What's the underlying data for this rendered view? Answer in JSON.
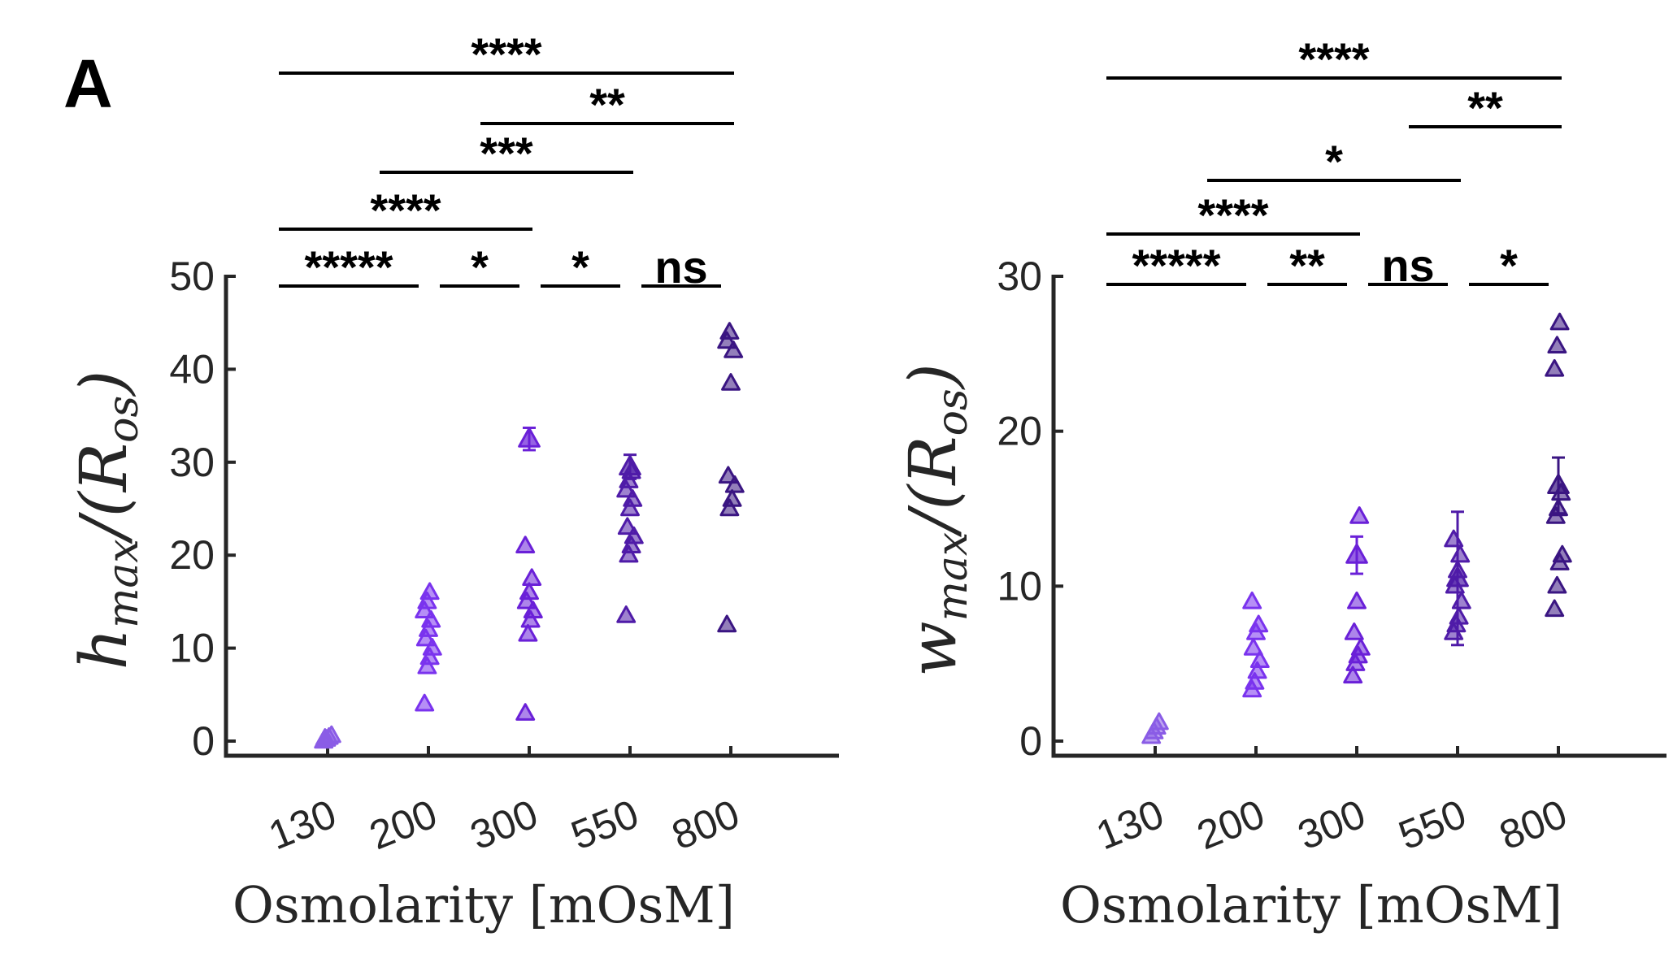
{
  "figure": {
    "panel_label": "A"
  },
  "chart_data": [
    {
      "type": "scatter",
      "ylabel_main": "h",
      "ylabel_sub": "max",
      "ylabel_rest": "/(R",
      "ylabel_sub2": "os",
      "ylabel_close": ")",
      "xlabel": "Osmolarity [mOsM]",
      "categories": [
        "130",
        "200",
        "300",
        "550",
        "800"
      ],
      "ylim": [
        -1.5,
        50
      ],
      "yticks": [
        0,
        10,
        20,
        30,
        40,
        50
      ],
      "grid": false,
      "colors": [
        "#8a5ce6",
        "#7a33ee",
        "#6a20d8",
        "#4f1ba8",
        "#3a1582"
      ],
      "series": [
        {
          "category": "130",
          "points": [
            0.0,
            0.2,
            0.4,
            0.6,
            0.3
          ]
        },
        {
          "category": "200",
          "points": [
            4,
            8,
            9,
            10,
            11,
            12,
            13,
            14,
            15,
            16
          ]
        },
        {
          "category": "300",
          "points": [
            3,
            11.5,
            13,
            14,
            15,
            16,
            17.5,
            21
          ],
          "mean_point": {
            "value": 32.5,
            "err": 1.2
          }
        },
        {
          "category": "550",
          "points": [
            13.5,
            20,
            21,
            22,
            23,
            25,
            26,
            27,
            28,
            29
          ],
          "mean_point": {
            "value": 29.5,
            "err": 1.3
          }
        },
        {
          "category": "800",
          "points": [
            12.5,
            25,
            26,
            27.5,
            28.5,
            38.5,
            42,
            43,
            44
          ]
        }
      ],
      "significance": [
        {
          "label": "*****",
          "from": "130",
          "to": "200",
          "level": 0
        },
        {
          "label": "*",
          "from": "200",
          "to": "300",
          "level": 0
        },
        {
          "label": "*",
          "from": "300",
          "to": "550",
          "level": 0
        },
        {
          "label": "ns",
          "from": "550",
          "to": "800",
          "level": 0
        },
        {
          "label": "****",
          "from": "130",
          "to": "300",
          "level": 1
        },
        {
          "label": "***",
          "from": "200",
          "to": "550",
          "level": 2
        },
        {
          "label": "**",
          "from": "300",
          "to": "800",
          "level": 3
        },
        {
          "label": "****",
          "from": "130",
          "to": "800",
          "level": 4
        }
      ]
    },
    {
      "type": "scatter",
      "ylabel_main": "w",
      "ylabel_sub": "max",
      "ylabel_rest": "/(R",
      "ylabel_sub2": "os",
      "ylabel_close": ")",
      "xlabel": "Osmolarity [mOsM]",
      "categories": [
        "130",
        "200",
        "300",
        "550",
        "800"
      ],
      "ylim": [
        -1.5,
        30
      ],
      "yticks": [
        0,
        10,
        20,
        30
      ],
      "grid": false,
      "colors": [
        "#8a5ce6",
        "#7a33ee",
        "#6a20d8",
        "#4f1ba8",
        "#3a1582"
      ],
      "series": [
        {
          "category": "130",
          "points": [
            0.3,
            0.6,
            0.9,
            1.2
          ]
        },
        {
          "category": "200",
          "points": [
            3.3,
            3.8,
            4.5,
            5.2,
            6,
            7,
            7.5,
            9
          ]
        },
        {
          "category": "300",
          "points": [
            4.2,
            5,
            5.5,
            6,
            7,
            9,
            14.5
          ],
          "mean_point": {
            "value": 12,
            "err": 1.2
          }
        },
        {
          "category": "550",
          "points": [
            7,
            7.5,
            8,
            9,
            10,
            11,
            12,
            13
          ],
          "mean_point": {
            "value": 10.5,
            "err": 4.3
          }
        },
        {
          "category": "800",
          "points": [
            8.5,
            10,
            11.5,
            12,
            14.5,
            15,
            16,
            24,
            25.5,
            27
          ],
          "mean_point": {
            "value": 16.5,
            "err": 1.8
          }
        }
      ],
      "significance": [
        {
          "label": "*****",
          "from": "130",
          "to": "200",
          "level": 0
        },
        {
          "label": "**",
          "from": "200",
          "to": "300",
          "level": 0
        },
        {
          "label": "ns",
          "from": "300",
          "to": "550",
          "level": 0
        },
        {
          "label": "*",
          "from": "550",
          "to": "800",
          "level": 0
        },
        {
          "label": "****",
          "from": "130",
          "to": "300",
          "level": 1
        },
        {
          "label": "*",
          "from": "200",
          "to": "550",
          "level": 2
        },
        {
          "label": "**",
          "from": "550",
          "to": "800",
          "level": 3
        },
        {
          "label": "****",
          "from": "130",
          "to": "800",
          "level": 4
        }
      ]
    }
  ]
}
